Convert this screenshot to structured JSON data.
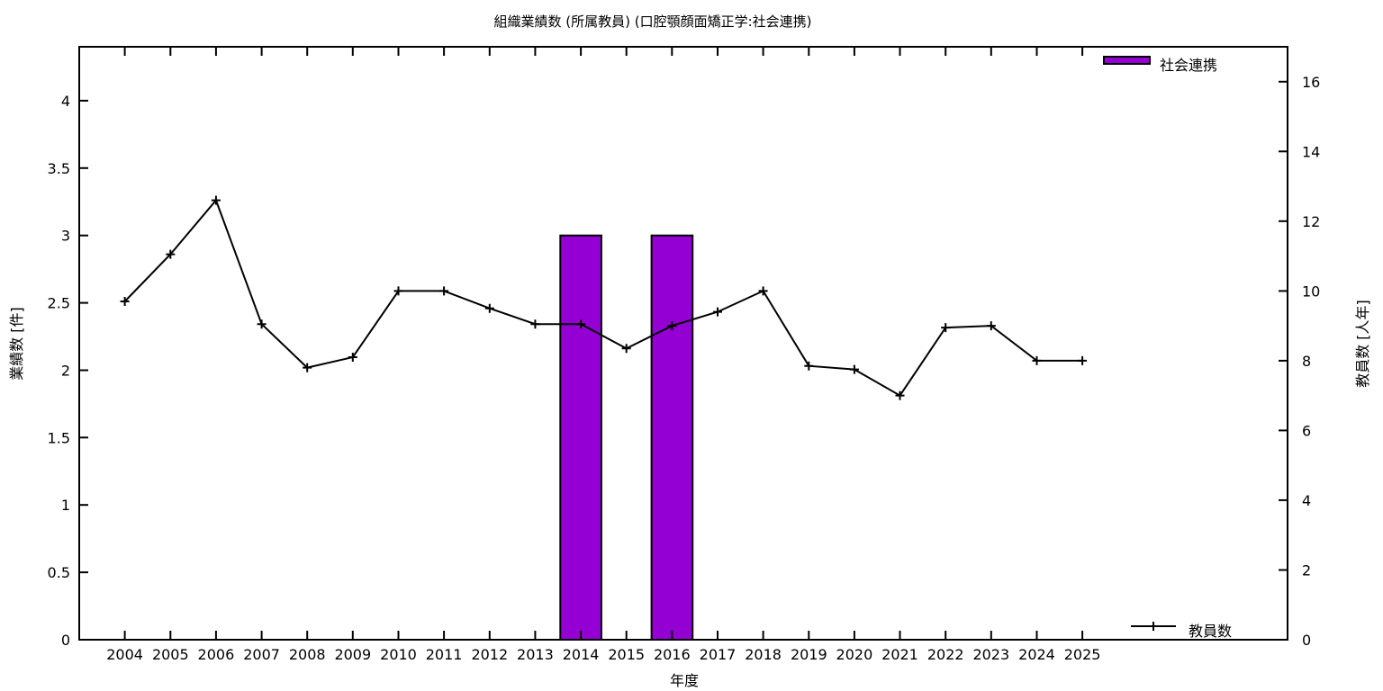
{
  "chart_data": {
    "type": "combo-bar-line",
    "title": "組織業績数 (所属教員) (口腔顎顔面矯正学:社会連携)",
    "xlabel": "年度",
    "ylabel_left": "業績数 [件]",
    "ylabel_right": "教員数 [人年]",
    "grid": false,
    "x_range": [
      2003,
      2029.5
    ],
    "x_ticks": [
      2004,
      2005,
      2006,
      2007,
      2008,
      2009,
      2010,
      2011,
      2012,
      2013,
      2014,
      2015,
      2016,
      2017,
      2018,
      2019,
      2020,
      2021,
      2022,
      2023,
      2024,
      2025
    ],
    "y_left": {
      "range": [
        0,
        4.4
      ],
      "ticks": [
        0,
        0.5,
        1,
        1.5,
        2,
        2.5,
        3,
        3.5,
        4
      ]
    },
    "y_right": {
      "range": [
        0,
        17
      ],
      "ticks": [
        0,
        2,
        4,
        6,
        8,
        10,
        12,
        14,
        16
      ]
    },
    "series": [
      {
        "name": "社会連携",
        "type": "bar",
        "axis": "left",
        "color": "#9400d3",
        "border_color": "#000000",
        "bar_width_years": 0.9,
        "points": [
          {
            "x": 2014,
            "y": 3
          },
          {
            "x": 2016,
            "y": 3
          }
        ]
      },
      {
        "name": "教員数",
        "type": "line",
        "axis": "right",
        "color": "#000000",
        "marker": "plus",
        "x": [
          2004,
          2005,
          2006,
          2007,
          2008,
          2009,
          2010,
          2011,
          2012,
          2013,
          2014,
          2015,
          2016,
          2017,
          2018,
          2019,
          2020,
          2021,
          2022,
          2023,
          2024,
          2025
        ],
        "values": [
          9.7,
          11.05,
          12.6,
          9.05,
          7.8,
          8.1,
          10.0,
          10.0,
          9.5,
          9.05,
          9.05,
          8.35,
          9.0,
          9.4,
          10.0,
          7.85,
          7.75,
          7.0,
          8.95,
          9.0,
          8.0,
          8.0
        ]
      }
    ],
    "legend_top": {
      "label": "社会連携"
    },
    "legend_bottom": {
      "label": "教員数"
    }
  }
}
